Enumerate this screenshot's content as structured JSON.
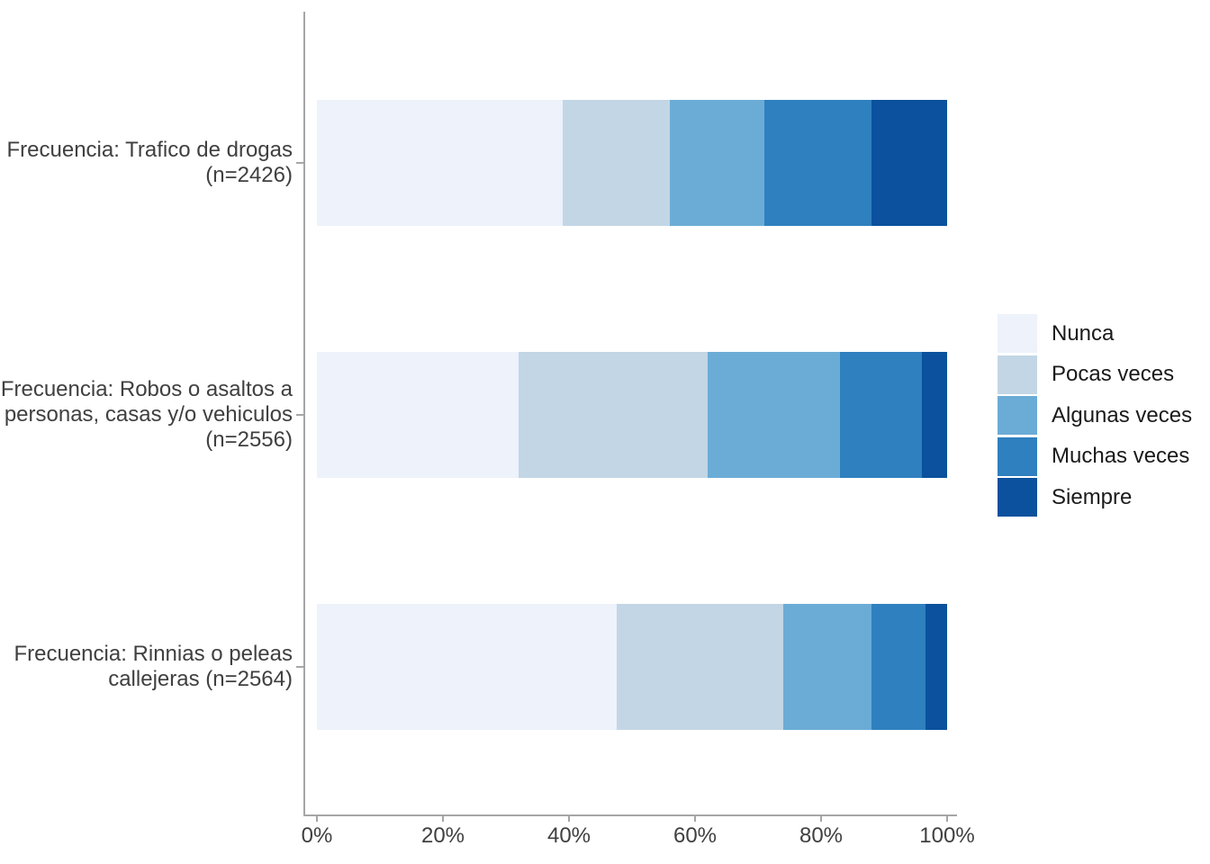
{
  "chart_data": {
    "type": "bar",
    "orientation": "horizontal",
    "stacked": true,
    "value_unit": "percent",
    "title": "",
    "xlabel": "",
    "ylabel": "",
    "grid": false,
    "categories": [
      "Frecuencia: Trafico de drogas\n(n=2426)",
      "Frecuencia: Robos o asaltos a\npersonas, casas y/o vehiculos\n(n=2556)",
      "Frecuencia: Rinnias o peleas\ncallejeras (n=2564)"
    ],
    "series": [
      {
        "name": "Nunca",
        "color": "#EDF2FB",
        "values": [
          39.0,
          32.0,
          47.5
        ]
      },
      {
        "name": "Pocas veces",
        "color": "#C3D6E6",
        "values": [
          17.0,
          30.0,
          26.5
        ]
      },
      {
        "name": "Algunas veces",
        "color": "#6BACD6",
        "values": [
          15.0,
          21.0,
          14.0
        ]
      },
      {
        "name": "Muchas veces",
        "color": "#2F80BF",
        "values": [
          17.0,
          13.0,
          8.5
        ]
      },
      {
        "name": "Siempre",
        "color": "#0B519D",
        "values": [
          12.0,
          4.0,
          3.5
        ]
      }
    ],
    "x_axis": {
      "min": 0,
      "max": 100,
      "tick_labels": [
        "0%",
        "20%",
        "40%",
        "60%",
        "80%",
        "100%"
      ]
    },
    "legend": {
      "position": "right",
      "entries": [
        "Nunca",
        "Pocas veces",
        "Algunas veces",
        "Muchas veces",
        "Siempre"
      ]
    },
    "style": {
      "axis_color": "#a6a6a6",
      "axis_text_color": "#404040",
      "legend_text_color": "#1a1a1a",
      "background": "#ffffff"
    }
  }
}
